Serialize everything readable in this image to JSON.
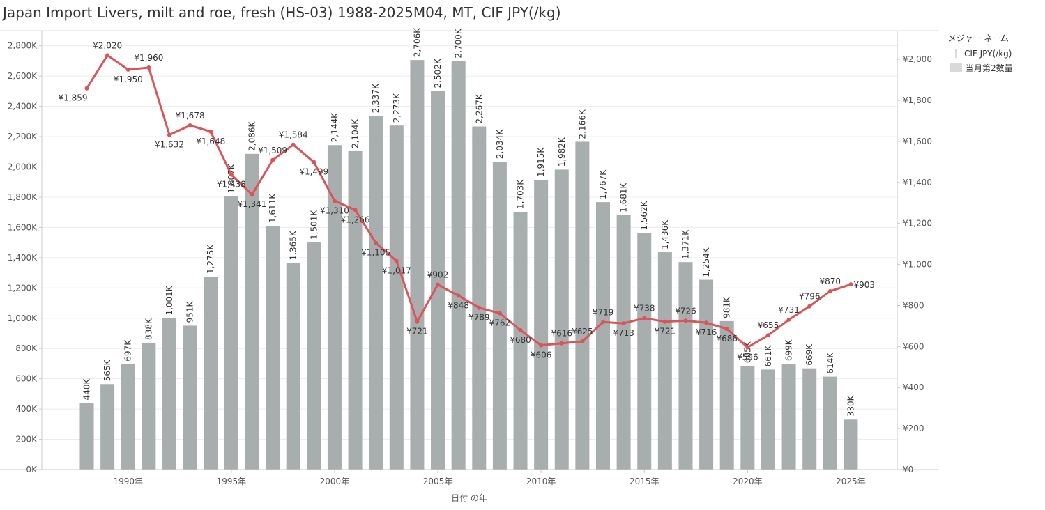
{
  "page": {
    "title": "Japan Import Livers, milt and roe, fresh (HS-03) 1988-2025M04, MT, CIF JPY(/kg)"
  },
  "legend": {
    "title": "メジャー ネーム",
    "items": [
      {
        "label": "CIF JPY(/kg)",
        "swatch": "line"
      },
      {
        "label": "当月第2数量",
        "swatch": "bar"
      }
    ]
  },
  "colors": {
    "bars": "#a8adad",
    "line": "#d9555a",
    "grid": "#ececec",
    "axis": "#c8c8c8",
    "text": "#555555"
  },
  "chart_data": {
    "type": "bar",
    "xlabel": "日付 の年",
    "years": [
      1988,
      1989,
      1990,
      1991,
      1992,
      1993,
      1994,
      1995,
      1996,
      1997,
      1998,
      1999,
      2000,
      2001,
      2002,
      2003,
      2004,
      2005,
      2006,
      2007,
      2008,
      2009,
      2010,
      2011,
      2012,
      2013,
      2014,
      2015,
      2016,
      2017,
      2018,
      2019,
      2020,
      2021,
      2022,
      2023,
      2024,
      2025
    ],
    "x_tick_labels": [
      {
        "year": 1990,
        "label": "1990年"
      },
      {
        "year": 1995,
        "label": "1995年"
      },
      {
        "year": 2000,
        "label": "2000年"
      },
      {
        "year": 2005,
        "label": "2005年"
      },
      {
        "year": 2010,
        "label": "2010年"
      },
      {
        "year": 2015,
        "label": "2015年"
      },
      {
        "year": 2020,
        "label": "2020年"
      },
      {
        "year": 2025,
        "label": "2025年"
      }
    ],
    "left_axis": {
      "ylim": [
        0,
        2900000
      ],
      "ticks": [
        0,
        200000,
        400000,
        600000,
        800000,
        1000000,
        1200000,
        1400000,
        1600000,
        1800000,
        2000000,
        2200000,
        2400000,
        2600000,
        2800000
      ],
      "tick_labels": [
        "0K",
        "200K",
        "400K",
        "600K",
        "800K",
        "1,000K",
        "1,200K",
        "1,400K",
        "1,600K",
        "1,800K",
        "2,000K",
        "2,200K",
        "2,400K",
        "2,600K",
        "2,800K"
      ]
    },
    "right_axis": {
      "ylim": [
        0,
        2140
      ],
      "ticks": [
        0,
        200,
        400,
        600,
        800,
        1000,
        1200,
        1400,
        1600,
        1800,
        2000
      ],
      "tick_labels": [
        "¥0",
        "¥200",
        "¥400",
        "¥600",
        "¥800",
        "¥1,000",
        "¥1,200",
        "¥1,400",
        "¥1,600",
        "¥1,800",
        "¥2,000"
      ]
    },
    "series": [
      {
        "name": "当月第2数量",
        "type": "bar",
        "axis": "left",
        "values": [
          440000,
          565000,
          697000,
          838000,
          1001000,
          951000,
          1275000,
          1807000,
          2086000,
          1611000,
          1365000,
          1501000,
          2144000,
          2104000,
          2337000,
          2273000,
          2706000,
          2502000,
          2700000,
          2267000,
          2034000,
          1703000,
          1915000,
          1982000,
          2166000,
          1767000,
          1681000,
          1562000,
          1436000,
          1371000,
          1254000,
          981000,
          685000,
          661000,
          699000,
          669000,
          614000,
          330000
        ],
        "labels": [
          "440K",
          "565K",
          "697K",
          "838K",
          "1,001K",
          "951K",
          "1,275K",
          "1,807K",
          "2,086K",
          "1,611K",
          "1,365K",
          "1,501K",
          "2,144K",
          "2,104K",
          "2,337K",
          "2,273K",
          "2,706K",
          "2,502K",
          "2,700K",
          "2,267K",
          "2,034K",
          "1,703K",
          "1,915K",
          "1,982K",
          "2,166K",
          "1,767K",
          "1,681K",
          "1,562K",
          "1,436K",
          "1,371K",
          "1,254K",
          "981K",
          "685K",
          "661K",
          "699K",
          "669K",
          "614K",
          "330K"
        ]
      },
      {
        "name": "CIF JPY(/kg)",
        "type": "line",
        "axis": "right",
        "values": [
          1859,
          2020,
          1950,
          1960,
          1632,
          1678,
          1648,
          1438,
          1341,
          1509,
          1584,
          1499,
          1310,
          1266,
          1105,
          1017,
          721,
          902,
          848,
          789,
          762,
          680,
          606,
          616,
          625,
          719,
          713,
          738,
          721,
          726,
          716,
          686,
          596,
          655,
          731,
          796,
          870,
          903
        ],
        "labels": [
          "¥1,859",
          "¥2,020",
          "¥1,950",
          "¥1,960",
          "¥1,632",
          "¥1,678",
          "¥1,648",
          "¥1,438",
          "¥1,341",
          "¥1,509",
          "¥1,584",
          "¥1,499",
          "¥1,310",
          "¥1,266",
          "¥1,105",
          "¥1,017",
          "¥721",
          "¥902",
          "¥848",
          "¥789",
          "¥762",
          "¥680",
          "¥606",
          "¥616",
          "¥625",
          "¥719",
          "¥713",
          "¥738",
          "¥721",
          "¥726",
          "¥716",
          "¥686",
          "¥596",
          "¥655",
          "¥731",
          "¥796",
          "¥870",
          "¥903"
        ]
      }
    ]
  }
}
